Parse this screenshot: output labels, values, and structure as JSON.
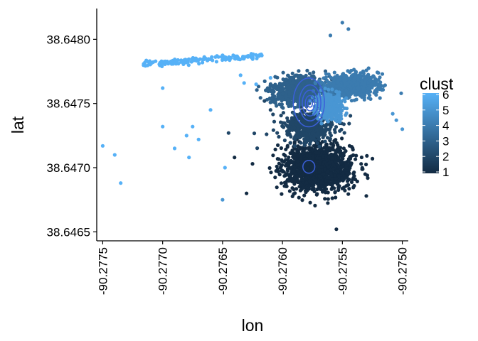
{
  "chart_data": {
    "type": "scatter",
    "title": "",
    "xlabel": "lon",
    "ylabel": "lat",
    "xlim": [
      -90.27755,
      -90.27495
    ],
    "ylim": [
      38.64643,
      38.64824
    ],
    "x_ticks": [
      -90.2775,
      -90.277,
      -90.2765,
      -90.276,
      -90.2755,
      -90.275
    ],
    "x_tick_labels": [
      "-90.2775",
      "-90.2770",
      "-90.2765",
      "-90.2760",
      "-90.2755",
      "-90.2750"
    ],
    "y_ticks": [
      38.6465,
      38.647,
      38.6475,
      38.648
    ],
    "y_tick_labels": [
      "38.6465",
      "38.6470",
      "38.6475",
      "38.6480"
    ],
    "grid": false,
    "point_color_variable": "clust",
    "legend": {
      "title": "clust",
      "position": "right",
      "type": "colorbar",
      "range": [
        1,
        6
      ],
      "breaks": [
        1,
        2,
        3,
        4,
        5,
        6
      ],
      "labels": [
        "6",
        "5",
        "4",
        "3",
        "2",
        "1"
      ],
      "color_low": "#132B43",
      "color_high": "#56B1F7"
    },
    "contour_color": "#3A5FD8",
    "contours": [
      {
        "cx": -90.27578,
        "cy": 38.647508,
        "rx": 0.00013,
        "ry": 0.00019
      },
      {
        "cx": -90.27577,
        "cy": 38.647505,
        "rx": 9e-05,
        "ry": 0.00014
      },
      {
        "cx": -90.27577,
        "cy": 38.647503,
        "rx": 6.5e-05,
        "ry": 0.0001
      },
      {
        "cx": -90.27577,
        "cy": 38.647502,
        "rx": 4e-05,
        "ry": 6e-05
      },
      {
        "cx": -90.27577,
        "cy": 38.647501,
        "rx": 2e-05,
        "ry": 3e-05
      },
      {
        "cx": -90.27578,
        "cy": 38.647007,
        "rx": 5e-05,
        "ry": 5e-05
      }
    ],
    "clusters": [
      {
        "clust": 1,
        "cx": -90.2757,
        "cy": 38.647,
        "sx": 0.00028,
        "sy": 0.00018,
        "n": 1400
      },
      {
        "clust": 2,
        "cx": -90.27578,
        "cy": 38.64732,
        "sx": 0.00022,
        "sy": 0.00012,
        "n": 420
      },
      {
        "clust": 3,
        "cx": -90.27585,
        "cy": 38.6476,
        "sx": 0.00022,
        "sy": 0.00011,
        "n": 900
      },
      {
        "clust": 4,
        "cx": -90.27542,
        "cy": 38.64764,
        "sx": 0.00022,
        "sy": 9e-05,
        "n": 650
      },
      {
        "clust": 5,
        "cx": -90.2756,
        "cy": 38.64748,
        "sx": 0.00012,
        "sy": 0.0001,
        "n": 300
      },
      {
        "clust": 6,
        "cx": -90.27667,
        "cy": 38.64784,
        "sx": 0.0005,
        "sy": 4e-05,
        "n": 140
      }
    ],
    "outliers": [
      {
        "x": -90.2775,
        "y": 38.64717,
        "clust": 6
      },
      {
        "x": -90.2774,
        "y": 38.6471,
        "clust": 6
      },
      {
        "x": -90.27735,
        "y": 38.64688,
        "clust": 6
      },
      {
        "x": -90.277,
        "y": 38.64762,
        "clust": 6
      },
      {
        "x": -90.277,
        "y": 38.64732,
        "clust": 6
      },
      {
        "x": -90.2769,
        "y": 38.64715,
        "clust": 6
      },
      {
        "x": -90.2768,
        "y": 38.64725,
        "clust": 6
      },
      {
        "x": -90.27675,
        "y": 38.64732,
        "clust": 6
      },
      {
        "x": -90.2767,
        "y": 38.64722,
        "clust": 6
      },
      {
        "x": -90.27678,
        "y": 38.64708,
        "clust": 6
      },
      {
        "x": -90.2766,
        "y": 38.64745,
        "clust": 6
      },
      {
        "x": -90.27648,
        "y": 38.647,
        "clust": 6
      },
      {
        "x": -90.27635,
        "y": 38.64772,
        "clust": 6
      },
      {
        "x": -90.27632,
        "y": 38.64766,
        "clust": 6
      },
      {
        "x": -90.27622,
        "y": 38.64765,
        "clust": 6
      },
      {
        "x": -90.2761,
        "y": 38.6477,
        "clust": 6
      },
      {
        "x": -90.2765,
        "y": 38.64675,
        "clust": 5
      },
      {
        "x": -90.27645,
        "y": 38.64727,
        "clust": 2
      },
      {
        "x": -90.2764,
        "y": 38.64708,
        "clust": 1
      },
      {
        "x": -90.2763,
        "y": 38.6468,
        "clust": 1
      },
      {
        "x": -90.27625,
        "y": 38.64703,
        "clust": 1
      },
      {
        "x": -90.27615,
        "y": 38.64752,
        "clust": 2
      },
      {
        "x": -90.2761,
        "y": 38.64745,
        "clust": 2
      },
      {
        "x": -90.2756,
        "y": 38.64803,
        "clust": 4
      },
      {
        "x": -90.2755,
        "y": 38.64813,
        "clust": 4
      },
      {
        "x": -90.27545,
        "y": 38.64808,
        "clust": 4
      },
      {
        "x": -90.27555,
        "y": 38.64652,
        "clust": 1
      },
      {
        "x": -90.2753,
        "y": 38.64678,
        "clust": 1
      },
      {
        "x": -90.27505,
        "y": 38.64737,
        "clust": 5
      },
      {
        "x": -90.275,
        "y": 38.6473,
        "clust": 5
      },
      {
        "x": -90.27508,
        "y": 38.64742,
        "clust": 5
      }
    ]
  }
}
